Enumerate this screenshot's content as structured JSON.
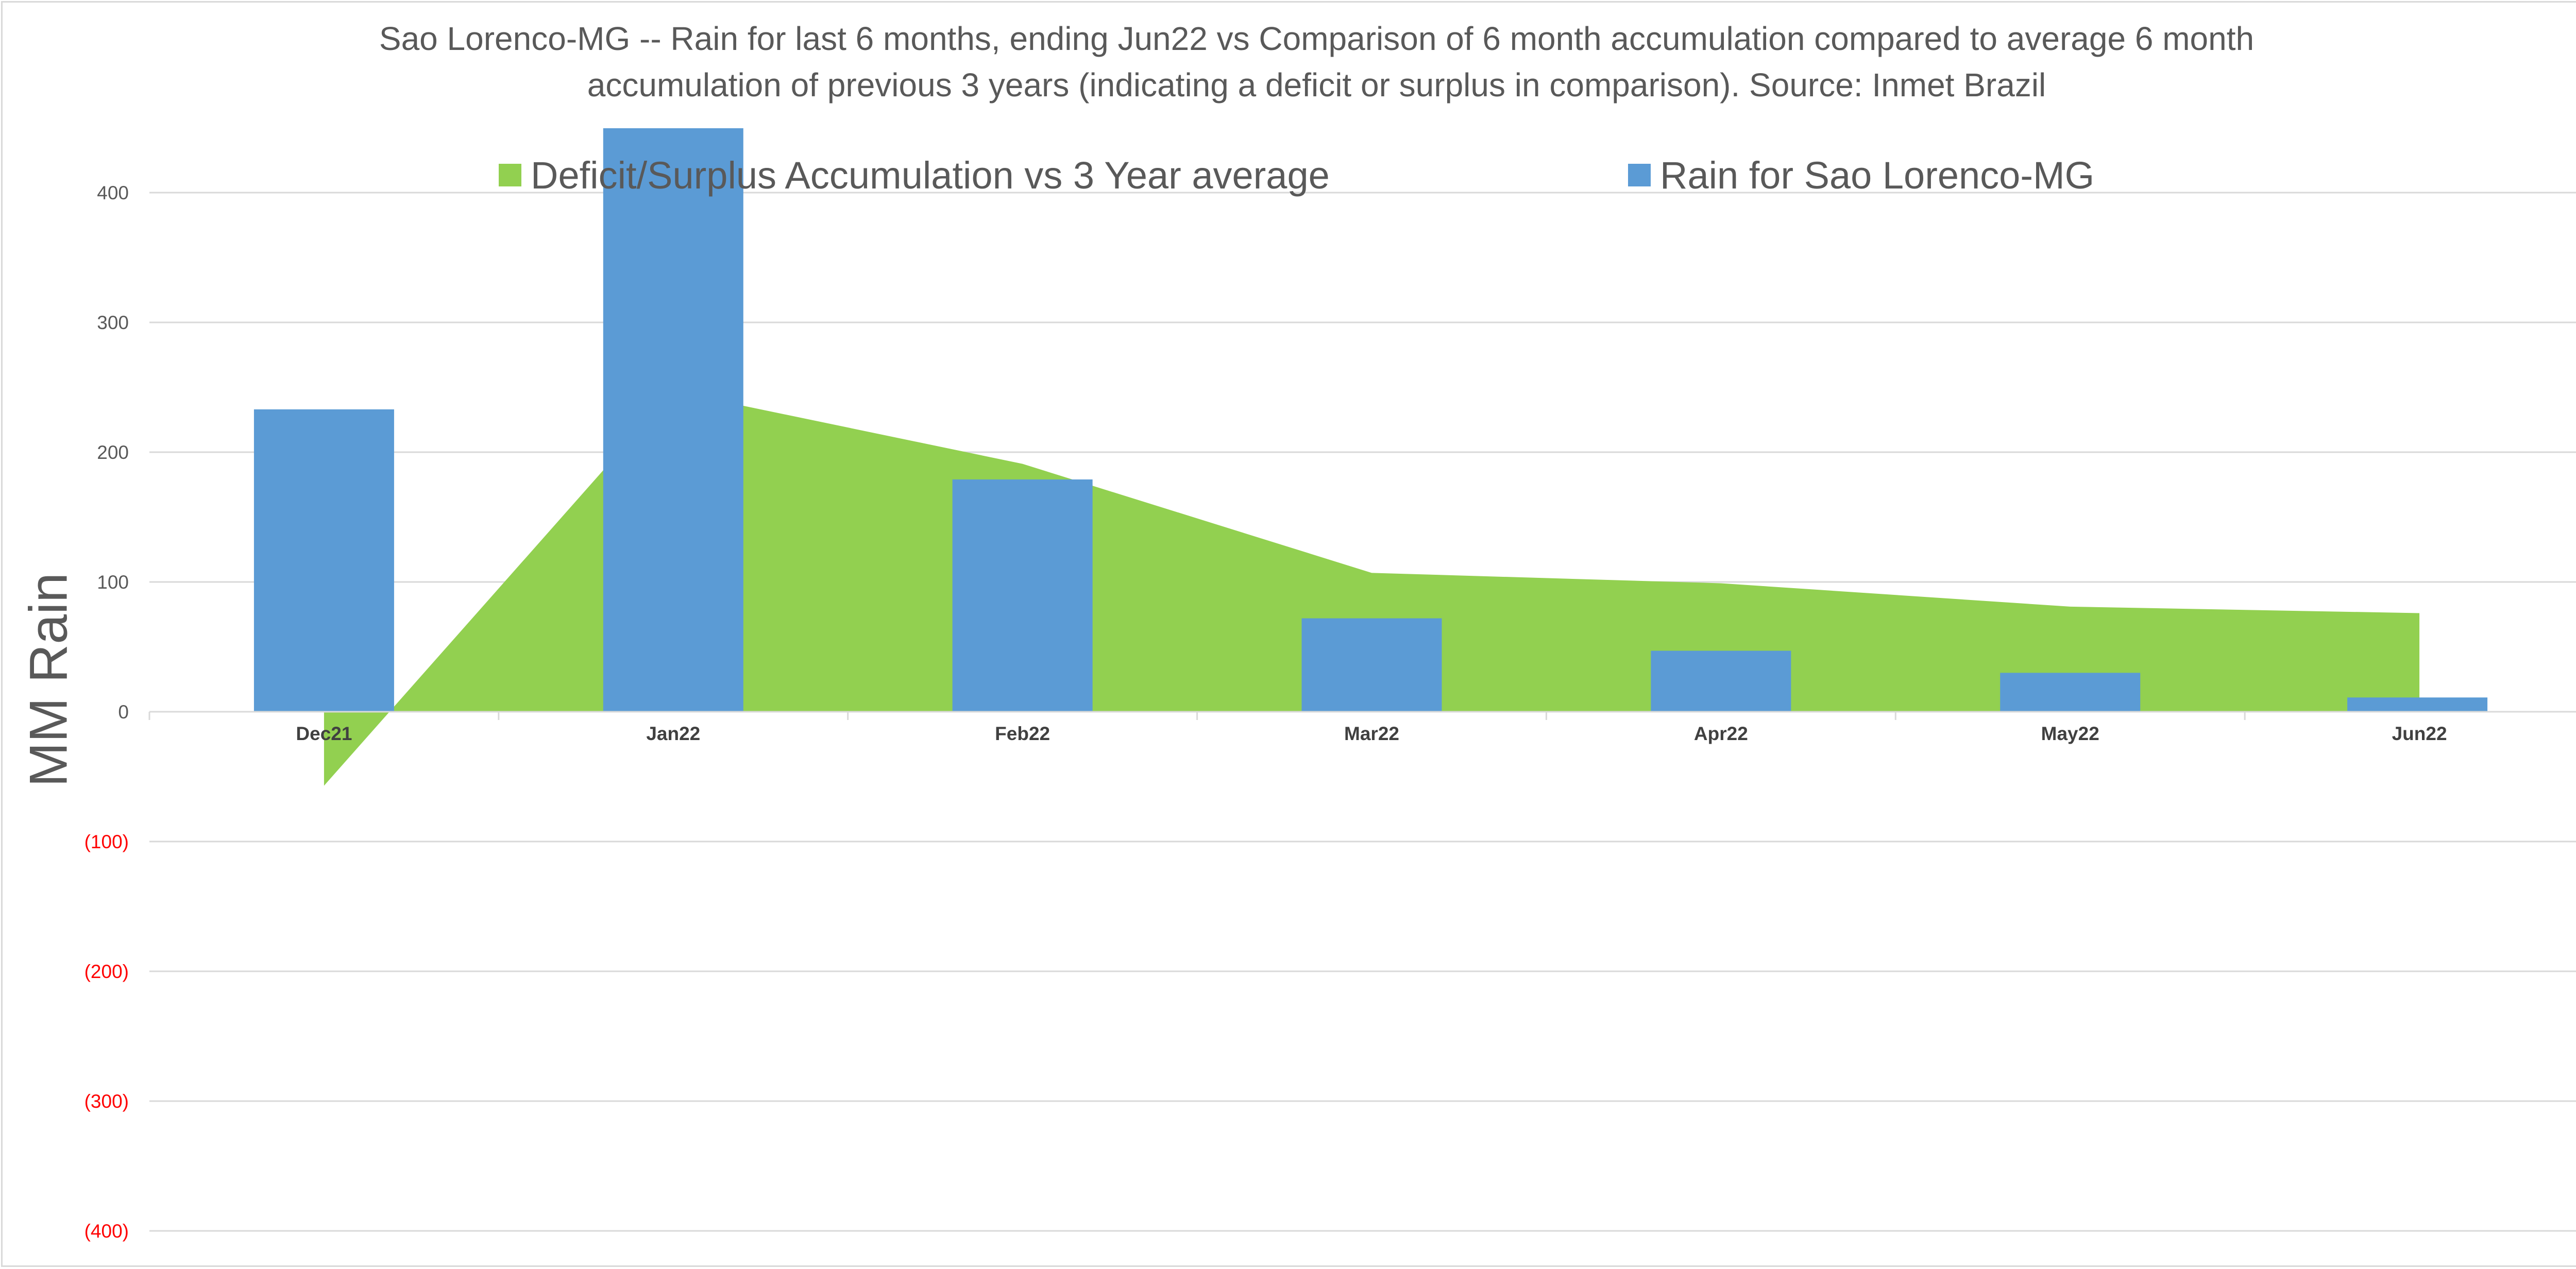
{
  "chart_data": {
    "type": "bar",
    "title_lines": [
      "Sao Lorenco-MG -- Rain for last 6 months, ending Jun22  vs Comparison of 6 month accumulation compared to average 6 month",
      "accumulation of previous 3 years  (indicating a deficit or surplus in comparison). Source: Inmet Brazil"
    ],
    "xlabel": "",
    "ylabel": "MM Rain",
    "ylim": [
      -400,
      400
    ],
    "yticks": [
      400,
      300,
      200,
      100,
      0,
      -100,
      -200,
      -300,
      -400
    ],
    "ytick_labels": [
      "400",
      "300",
      "200",
      "100",
      "0",
      "(100)",
      "(200)",
      "(300)",
      "(400)"
    ],
    "negative_tick_color": "#ff0000",
    "grid": true,
    "legend_position": "top",
    "categories": [
      "Dec21",
      "Jan22",
      "Feb22",
      "Mar22",
      "Apr22",
      "May22",
      "Jun22"
    ],
    "series": [
      {
        "name": "Deficit/Surplus Accumulation vs 3 Year average",
        "type": "area",
        "color": "#92d050",
        "values": [
          -57,
          247,
          191,
          107,
          99,
          81,
          76
        ]
      },
      {
        "name": "Rain for Sao Lorenco-MG",
        "type": "bar",
        "color": "#5b9bd5",
        "values": [
          233,
          450,
          179,
          72,
          47,
          30,
          11
        ]
      }
    ]
  }
}
